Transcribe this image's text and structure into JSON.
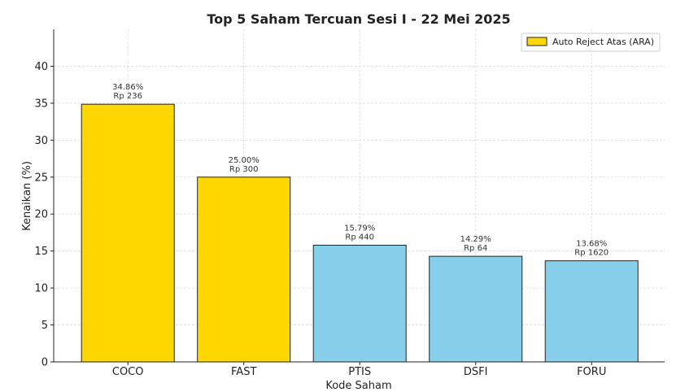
{
  "chart_data": {
    "type": "bar",
    "title": "Top 5 Saham Tercuan Sesi I - 22 Mei 2025",
    "xlabel": "Kode Saham",
    "ylabel": "Kenaikan (%)",
    "ylim": [
      0,
      45
    ],
    "yticks": [
      0,
      5,
      10,
      15,
      20,
      25,
      30,
      35,
      40
    ],
    "grid": true,
    "legend": {
      "position": "top-right",
      "entries": [
        {
          "label": "Auto Reject Atas (ARA)",
          "color": "#FFD700"
        }
      ]
    },
    "categories": [
      "COCO",
      "FAST",
      "PTIS",
      "DSFI",
      "FORU"
    ],
    "values": [
      34.86,
      25.0,
      15.79,
      14.29,
      13.68
    ],
    "value_labels": [
      "34.86%",
      "25.00%",
      "15.79%",
      "14.29%",
      "13.68%"
    ],
    "price_labels": [
      "Rp 236",
      "Rp 300",
      "Rp 440",
      "Rp 64",
      "Rp 1620"
    ],
    "ara": [
      true,
      true,
      false,
      false,
      false
    ],
    "colors": {
      "ara": "#FFD700",
      "normal": "#87CEEB",
      "edge": "#222222"
    }
  }
}
